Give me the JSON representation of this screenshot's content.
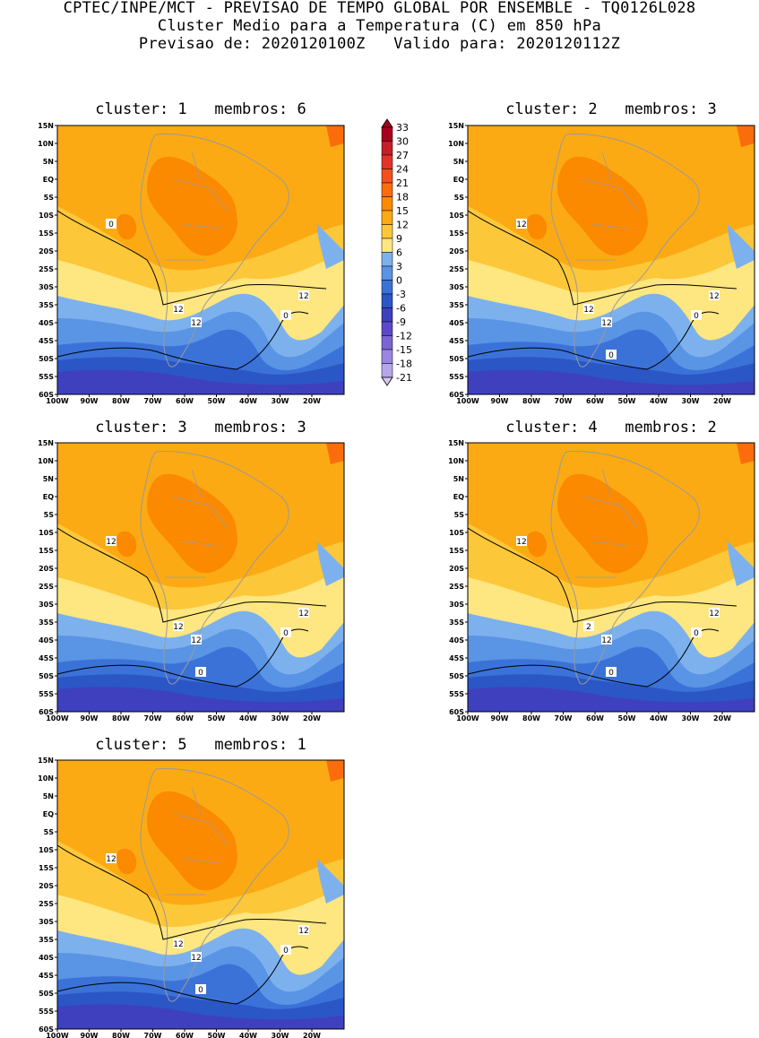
{
  "header": {
    "line1": "CPTEC/INPE/MCT - PREVISAO DE TEMPO GLOBAL POR ENSEMBLE - TQ0126L028",
    "line2": "Cluster Medio para a Temperatura (C) em 850 hPa",
    "line3": "Previsao de: 2020120100Z   Valido para: 2020120112Z"
  },
  "axes": {
    "lat_labels": [
      "15N",
      "10N",
      "5N",
      "EQ",
      "5S",
      "10S",
      "15S",
      "20S",
      "25S",
      "30S",
      "35S",
      "40S",
      "45S",
      "50S",
      "55S",
      "60S"
    ],
    "lon_labels": [
      "100W",
      "90W",
      "80W",
      "70W",
      "60W",
      "50W",
      "40W",
      "30W",
      "20W"
    ]
  },
  "colorbar": {
    "labels": [
      "33",
      "30",
      "27",
      "24",
      "21",
      "18",
      "15",
      "12",
      "9",
      "6",
      "3",
      "0",
      "-3",
      "-6",
      "-9",
      "-12",
      "-15",
      "-18",
      "-21"
    ],
    "colors": [
      "#a8001e",
      "#c41e27",
      "#e0342a",
      "#f4501e",
      "#fb6d0c",
      "#fb8a00",
      "#fcaa14",
      "#fdc73a",
      "#fee680",
      "#7db1ee",
      "#5a94e4",
      "#3b72d8",
      "#2b56c6",
      "#3f40be",
      "#5f48c8",
      "#7d64d4",
      "#9a86e0",
      "#b7a6ea",
      "#d3c9f3"
    ]
  },
  "panels": [
    {
      "title": "cluster: 1   membros: 6",
      "contour_labels": [
        "12",
        "12",
        "12",
        "0",
        "0"
      ]
    },
    {
      "title": "cluster: 2   membros: 3",
      "contour_labels": [
        "12",
        "12",
        "12",
        "12",
        "0",
        "0"
      ]
    },
    {
      "title": "cluster: 3   membros: 3",
      "contour_labels": [
        "12",
        "12",
        "12",
        "12",
        "0",
        "0"
      ]
    },
    {
      "title": "cluster: 4   membros: 2",
      "contour_labels": [
        "2",
        "12",
        "12",
        "12",
        "0",
        "0"
      ]
    },
    {
      "title": "cluster: 5   membros: 1",
      "contour_labels": [
        "12",
        "12",
        "12",
        "12",
        "0",
        "0"
      ]
    }
  ]
}
